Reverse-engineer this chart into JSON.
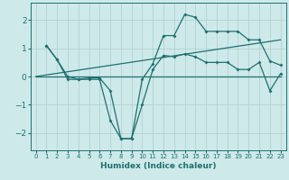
{
  "xlabel": "Humidex (Indice chaleur)",
  "background_color": "#cee9e9",
  "grid_color": "#b0cccc",
  "line_color": "#1e7070",
  "xlim": [
    -0.5,
    23.5
  ],
  "ylim": [
    -2.6,
    2.6
  ],
  "xticks": [
    0,
    1,
    2,
    3,
    4,
    5,
    6,
    7,
    8,
    9,
    10,
    11,
    12,
    13,
    14,
    15,
    16,
    17,
    18,
    19,
    20,
    21,
    22,
    23
  ],
  "yticks": [
    -2,
    -1,
    0,
    1,
    2
  ],
  "line1_x": [
    1,
    2,
    3,
    4,
    5,
    6,
    7,
    8,
    9,
    10,
    11,
    12,
    13,
    14,
    15,
    16,
    17,
    18,
    19,
    20,
    21,
    22,
    23
  ],
  "line1_y": [
    1.1,
    0.6,
    0.0,
    -0.1,
    -0.1,
    -0.1,
    -1.55,
    -2.2,
    -2.2,
    -1.0,
    0.25,
    0.75,
    0.7,
    0.8,
    0.7,
    0.5,
    0.5,
    0.5,
    0.25,
    0.25,
    0.5,
    -0.5,
    0.1
  ],
  "line2_x": [
    1,
    2,
    3,
    4,
    5,
    6,
    7,
    8,
    9,
    10,
    11,
    12,
    13,
    14,
    15,
    16,
    17,
    18,
    19,
    20,
    21,
    22,
    23
  ],
  "line2_y": [
    1.1,
    0.6,
    -0.1,
    -0.1,
    -0.05,
    -0.05,
    -0.5,
    -2.2,
    -2.2,
    -0.1,
    0.45,
    1.45,
    1.45,
    2.2,
    2.1,
    1.6,
    1.6,
    1.6,
    1.6,
    1.3,
    1.3,
    0.55,
    0.4
  ],
  "line3_x": [
    0,
    23
  ],
  "line3_y": [
    0.0,
    0.0
  ],
  "line4_x": [
    0,
    23
  ],
  "line4_y": [
    0.0,
    1.3
  ]
}
